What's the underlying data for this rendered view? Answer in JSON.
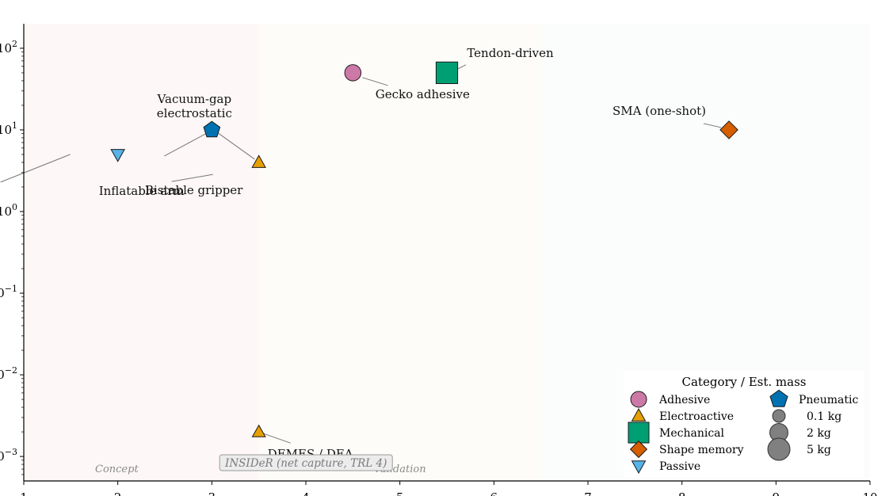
{
  "chart_data": {
    "type": "scatter",
    "title": "",
    "xlabel": "",
    "ylabel": "",
    "xlim": [
      1,
      10
    ],
    "ylim": [
      -3.3,
      2.3
    ],
    "y_log_scale": true,
    "x_ticks": [
      {
        "value": 1,
        "label": "1"
      },
      {
        "value": 2,
        "label": "2"
      },
      {
        "value": 3,
        "label": "3"
      },
      {
        "value": 4,
        "label": "4"
      },
      {
        "value": 5,
        "label": "5"
      },
      {
        "value": 6,
        "label": "6"
      },
      {
        "value": 7,
        "label": "7"
      },
      {
        "value": 8,
        "label": "8"
      },
      {
        "value": 9,
        "label": "9"
      },
      {
        "value": 10,
        "label": "10"
      }
    ],
    "y_ticks": [
      {
        "value": 2,
        "base": "10",
        "exp": "2"
      },
      {
        "value": 1,
        "base": "10",
        "exp": "1"
      },
      {
        "value": 0,
        "base": "10",
        "exp": "0"
      },
      {
        "value": -1,
        "base": "10",
        "exp": "−1"
      },
      {
        "value": -2,
        "base": "10",
        "exp": "−2"
      },
      {
        "value": -3,
        "base": "10",
        "exp": "−3"
      }
    ],
    "bands": [
      {
        "label": "Concept",
        "from": 1,
        "to": 3.5,
        "color": "#fdf7f7"
      },
      {
        "label": "Validation",
        "from": 3.5,
        "to": 6.5,
        "color": "#fdfcf8"
      },
      {
        "label": "",
        "from": 6.5,
        "to": 10,
        "color": "#fbfcfc"
      }
    ],
    "categories": [
      {
        "name": "Adhesive",
        "marker": "circle",
        "color": "#cc79a7"
      },
      {
        "name": "Electroactive",
        "marker": "triangle-up",
        "color": "#e69f00"
      },
      {
        "name": "Mechanical",
        "marker": "square",
        "color": "#009e73"
      },
      {
        "name": "Shape memory",
        "marker": "diamond",
        "color": "#d55e00"
      },
      {
        "name": "Passive",
        "marker": "triangle-down",
        "color": "#56b4e9"
      },
      {
        "name": "Pneumatic",
        "marker": "pentagon",
        "color": "#0072b2"
      }
    ],
    "points": [
      {
        "label": "Gecko adhesive",
        "category": "Adhesive",
        "x": 4.5,
        "y": 1.7,
        "mass": 0.6
      },
      {
        "label": "Tendon-driven",
        "category": "Mechanical",
        "x": 5.5,
        "y": 1.7,
        "mass": 2.5
      },
      {
        "label": "Vacuum-gap\nelectrostatic",
        "category": "Pneumatic",
        "x": 3.0,
        "y": 1.0,
        "mass": 0.6
      },
      {
        "label": "Bistable gripper",
        "category": "Electroactive",
        "x": 3.5,
        "y": 0.6,
        "mass": 0.2
      },
      {
        "label": "Inflatable arm",
        "category": "Passive",
        "x": 2.0,
        "y": 0.7,
        "mass": 0.2
      },
      {
        "label": "SMA (one-shot)",
        "category": "Shape memory",
        "x": 8.5,
        "y": 1.0,
        "mass": 0.4
      },
      {
        "label": "DEMES / DEA",
        "category": "Electroactive",
        "x": 3.5,
        "y": -2.7,
        "mass": 0.15
      }
    ],
    "annotation_box": "INSIDeR (net capture, TRL 4)",
    "legend": {
      "title": "Category / Est. mass",
      "placement": "lower-right",
      "sizes": [
        {
          "label": "0.1 kg",
          "mass": 0.1
        },
        {
          "label": "2 kg",
          "mass": 2
        },
        {
          "label": "5 kg",
          "mass": 5
        }
      ]
    }
  }
}
